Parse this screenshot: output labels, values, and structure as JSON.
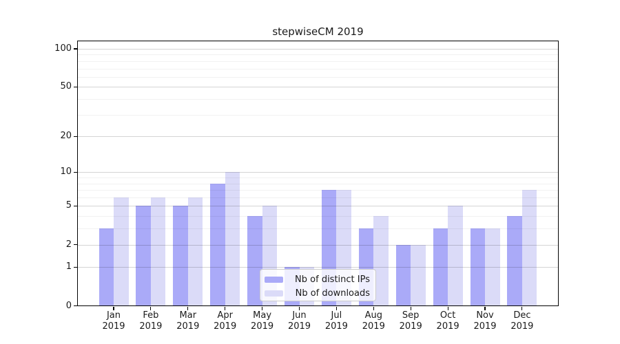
{
  "chart_data": {
    "type": "bar",
    "title": "stepwiseCM 2019",
    "categories": [
      "Jan 2019",
      "Feb 2019",
      "Mar 2019",
      "Apr 2019",
      "May 2019",
      "Jun 2019",
      "Jul 2019",
      "Aug 2019",
      "Sep 2019",
      "Oct 2019",
      "Nov 2019",
      "Dec 2019"
    ],
    "series": [
      {
        "name": "Nb of distinct IPs",
        "color": "#aaaaf8",
        "values": [
          3,
          5,
          5,
          8,
          4,
          1,
          7,
          3,
          2,
          3,
          3,
          4
        ]
      },
      {
        "name": "Nb of downloads",
        "color": "#dbdbf8",
        "values": [
          6,
          6,
          6,
          10,
          5,
          1,
          7,
          4,
          2,
          5,
          3,
          7
        ]
      }
    ],
    "yscale": "log1p",
    "ylim": [
      0,
      114
    ],
    "yticks": [
      0,
      1,
      2,
      5,
      10,
      20,
      50,
      100
    ],
    "yticks_minor": [
      3,
      4,
      6,
      7,
      8,
      9,
      30,
      40,
      60,
      70,
      80,
      90
    ],
    "grid": true,
    "legend_position": "lower-center-inside",
    "xlabel": "",
    "ylabel": ""
  },
  "colors": {
    "ips_bar": "#aaaaf8",
    "downloads_bar": "#dbdbf8",
    "axis": "#000000",
    "legend_border": "#cccccc"
  }
}
